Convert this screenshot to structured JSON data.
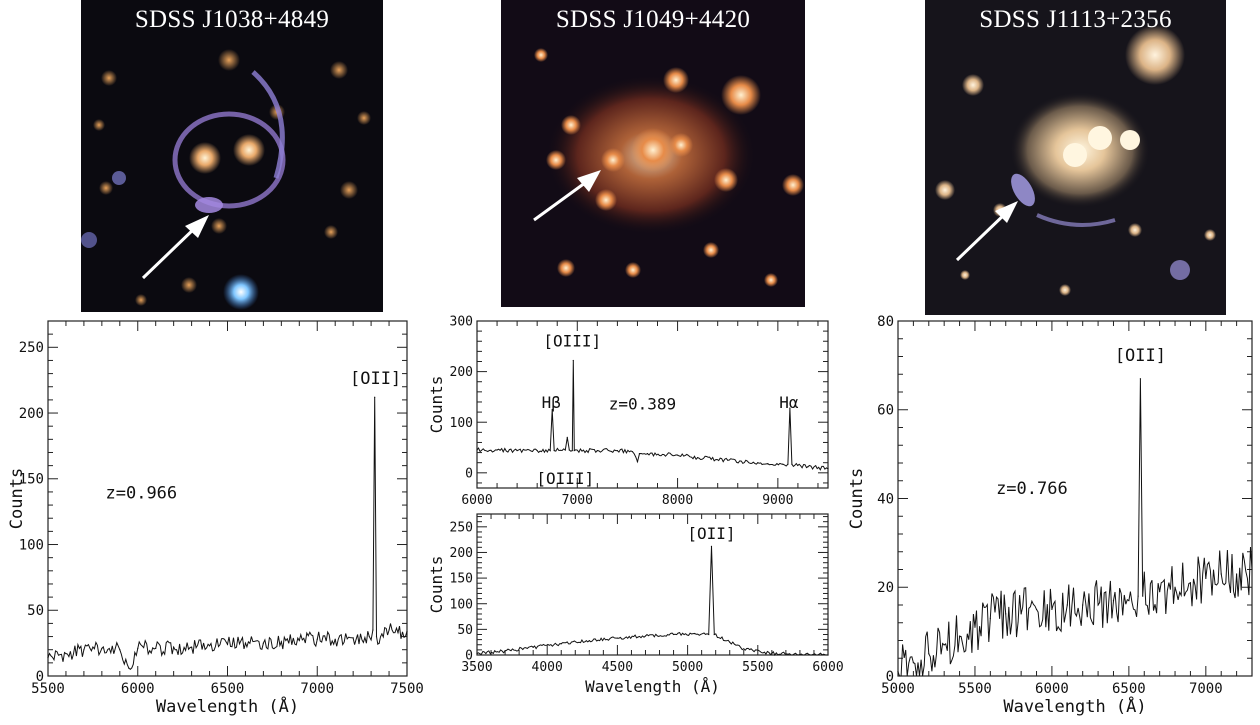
{
  "images": [
    {
      "name": "SDSS J1038+4849"
    },
    {
      "name": "SDSS J1049+4420"
    },
    {
      "name": "SDSS J1113+2356"
    }
  ],
  "chart_data": [
    {
      "id": "spec1",
      "type": "line",
      "title": "",
      "xlabel": "Wavelength (Å)",
      "ylabel": "Counts",
      "xlim": [
        5500,
        7500
      ],
      "ylim": [
        0,
        270
      ],
      "xticks": [
        5500,
        6000,
        6500,
        7000,
        7500
      ],
      "yticks": [
        0,
        50,
        100,
        150,
        200,
        250
      ],
      "annotations": [
        {
          "text": "[OII]",
          "x": 7325,
          "y": 222
        },
        {
          "text": "z=0.966",
          "x": 6020,
          "y": 135
        }
      ],
      "series": [
        {
          "x": [
            5500,
            5600,
            5700,
            5800,
            5900,
            5950,
            6000,
            6100,
            6200,
            6300,
            6400,
            6500,
            6600,
            6700,
            6800,
            6900,
            7000,
            7100,
            7200,
            7290,
            7310,
            7320,
            7330,
            7345,
            7360,
            7400,
            7450,
            7500
          ],
          "y": [
            14,
            17,
            20,
            21,
            20,
            6,
            21,
            21,
            22,
            22,
            23,
            24,
            25,
            25,
            26,
            27,
            28,
            28,
            29,
            30,
            35,
            212,
            30,
            25,
            32,
            35,
            33,
            34
          ]
        }
      ]
    },
    {
      "id": "spec2",
      "type": "line",
      "title": "",
      "xlabel": "",
      "ylabel": "Counts",
      "xlim": [
        6000,
        9500
      ],
      "ylim": [
        -30,
        300
      ],
      "xticks": [
        6000,
        7000,
        8000,
        9000
      ],
      "yticks": [
        0,
        100,
        200,
        300
      ],
      "annotations": [
        {
          "text": "[OIII]",
          "x": 6950,
          "y": 250
        },
        {
          "text": "Hβ",
          "x": 6740,
          "y": 128
        },
        {
          "text": "z=0.389",
          "x": 7650,
          "y": 125
        },
        {
          "text": "Hα",
          "x": 9110,
          "y": 128
        },
        {
          "text": "[OIII]",
          "x": 6880,
          "y": -22
        }
      ],
      "series": [
        {
          "x": [
            6000,
            6200,
            6400,
            6600,
            6730,
            6750,
            6770,
            6880,
            6900,
            6920,
            6950,
            6960,
            6970,
            7200,
            7400,
            7550,
            7600,
            7620,
            7700,
            8000,
            8200,
            8500,
            8800,
            8900,
            9050,
            9100,
            9120,
            9140,
            9300,
            9500
          ],
          "y": [
            45,
            45,
            44,
            44,
            44,
            125,
            44,
            45,
            70,
            45,
            44,
            222,
            44,
            44,
            44,
            42,
            22,
            38,
            38,
            35,
            30,
            25,
            20,
            18,
            17,
            17,
            128,
            17,
            12,
            8
          ]
        }
      ]
    },
    {
      "id": "spec3",
      "type": "line",
      "title": "",
      "xlabel": "Wavelength (Å)",
      "ylabel": "Counts",
      "xlim": [
        3500,
        6000
      ],
      "ylim": [
        0,
        275
      ],
      "xticks": [
        3500,
        4000,
        4500,
        5000,
        5500,
        6000
      ],
      "yticks": [
        0,
        50,
        100,
        150,
        200,
        250
      ],
      "annotations": [
        {
          "text": "[OII]",
          "x": 5170,
          "y": 226
        }
      ],
      "series": [
        {
          "x": [
            3500,
            3700,
            3900,
            4100,
            4300,
            4500,
            4700,
            4900,
            5050,
            5150,
            5170,
            5190,
            5300,
            5400,
            5600,
            5800,
            6000
          ],
          "y": [
            3,
            8,
            15,
            22,
            28,
            33,
            37,
            40,
            42,
            40,
            212,
            40,
            25,
            12,
            3,
            1,
            0
          ]
        }
      ]
    },
    {
      "id": "spec4",
      "type": "line",
      "title": "",
      "xlabel": "Wavelength (Å)",
      "ylabel": "Counts",
      "xlim": [
        5000,
        7300
      ],
      "ylim": [
        0,
        80
      ],
      "xticks": [
        5000,
        5500,
        6000,
        6500,
        7000
      ],
      "yticks": [
        0,
        20,
        40,
        60,
        80
      ],
      "annotations": [
        {
          "text": "[OII]",
          "x": 6575,
          "y": 71
        },
        {
          "text": "z=0.766",
          "x": 5870,
          "y": 41
        }
      ],
      "series": [
        {
          "x": [
            5000,
            5100,
            5200,
            5300,
            5400,
            5500,
            5600,
            5700,
            5800,
            5900,
            6000,
            6100,
            6200,
            6300,
            6400,
            6500,
            6560,
            6575,
            6590,
            6700,
            6800,
            6900,
            7000,
            7100,
            7200,
            7300
          ],
          "y": [
            1,
            3,
            5,
            7,
            9,
            11,
            13,
            14,
            14,
            15,
            15,
            16,
            16,
            16,
            17,
            17,
            18,
            67,
            18,
            19,
            20,
            21,
            22,
            23,
            23,
            24
          ]
        }
      ]
    }
  ]
}
